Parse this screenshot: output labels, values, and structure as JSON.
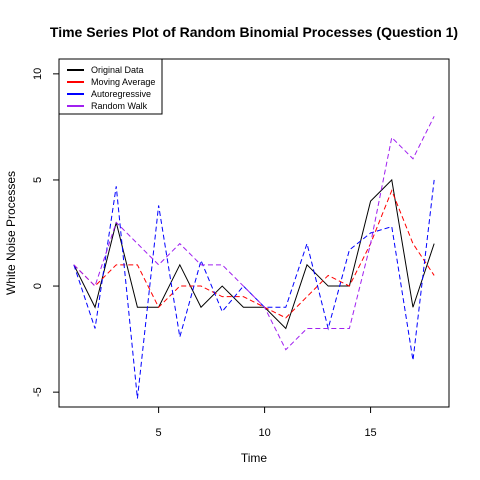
{
  "chart_data": {
    "type": "line",
    "title": "Time Series Plot of Random Binomial Processes (Question 1)",
    "xlabel": "Time",
    "ylabel": "White Noise Processes",
    "xlim": [
      0.3,
      18.7
    ],
    "ylim": [
      -5.7,
      10.7
    ],
    "xticks": [
      5,
      10,
      15
    ],
    "yticks": [
      -5,
      0,
      5,
      10
    ],
    "grid": false,
    "legend_position": "top-left",
    "x": [
      1,
      2,
      3,
      4,
      5,
      6,
      7,
      8,
      9,
      10,
      11,
      12,
      13,
      14,
      15,
      16,
      17,
      18
    ],
    "series": [
      {
        "name": "Original Data",
        "color": "#000000",
        "dash": "solid",
        "values": [
          1,
          -1,
          3,
          -1,
          -1,
          1,
          -1,
          0,
          -1,
          -1,
          -2,
          1,
          0,
          0,
          4,
          5,
          -1,
          2
        ]
      },
      {
        "name": "Moving Average",
        "color": "#ff0000",
        "dash": "dashed",
        "values": [
          1,
          0,
          1,
          1,
          -1,
          0,
          0,
          -0.5,
          -0.5,
          -1,
          -1.5,
          -0.5,
          0.5,
          0,
          2,
          4.5,
          2,
          0.5
        ]
      },
      {
        "name": "Autoregressive",
        "color": "#0000ff",
        "dash": "dashed",
        "values": [
          1,
          -2,
          4.7,
          -5.3,
          3.8,
          -2.4,
          1.2,
          -1.2,
          0,
          -1,
          -1,
          2,
          -2,
          1.7,
          2.5,
          2.8,
          -3.5,
          5
        ]
      },
      {
        "name": "Random Walk",
        "color": "#a020f0",
        "dash": "dashed",
        "values": [
          1,
          0,
          3,
          2,
          1,
          2,
          1,
          1,
          0,
          -1,
          -3,
          -2,
          -2,
          -2,
          2,
          7,
          6,
          8
        ]
      }
    ]
  }
}
